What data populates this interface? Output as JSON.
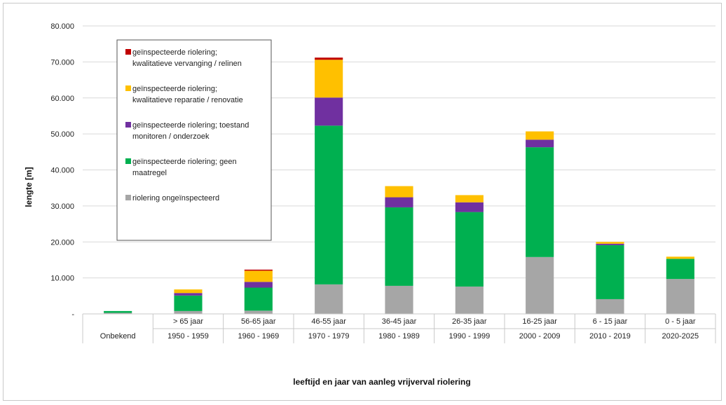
{
  "chart_data": {
    "type": "bar",
    "stacked": true,
    "ylabel": "lengte [m]",
    "xlabel": "leeftijd en jaar van aanleg vrijverval riolering",
    "ylim": [
      0,
      80000
    ],
    "yticks": [
      "-",
      "10.000",
      "20.000",
      "30.000",
      "40.000",
      "50.000",
      "60.000",
      "70.000",
      "80.000"
    ],
    "grid": true,
    "legend_position": "top-left",
    "categories_age": [
      "",
      "> 65 jaar",
      "56-65 jaar",
      "46-55 jaar",
      "36-45 jaar",
      "26-35 jaar",
      "16-25 jaar",
      "6 - 15 jaar",
      "0 - 5 jaar"
    ],
    "categories_year": [
      "Onbekend",
      "1950 - 1959",
      "1960 - 1969",
      "1970 - 1979",
      "1980 - 1989",
      "1990 - 1999",
      "2000 - 2009",
      "2010 - 2019",
      "2020-2025"
    ],
    "series": [
      {
        "name": "riolering ongeïnspecteerd",
        "color": "#a6a6a6",
        "values": [
          300,
          800,
          900,
          8200,
          7800,
          7600,
          15800,
          4100,
          9700
        ]
      },
      {
        "name": "geïnspecteerde riolering; geen maatregel",
        "color": "#00b050",
        "values": [
          500,
          4300,
          6400,
          44100,
          21800,
          20700,
          30500,
          15000,
          5600
        ]
      },
      {
        "name": "geïnspecteerde riolering; toestand monitoren / onderzoek",
        "color": "#7030a0",
        "values": [
          0,
          700,
          1600,
          7800,
          2800,
          2700,
          2100,
          400,
          0
        ]
      },
      {
        "name": "geïnspecteerde riolering; kwalitatieve reparatie / renovatie",
        "color": "#ffc000",
        "values": [
          0,
          1000,
          3100,
          10500,
          3100,
          2000,
          2300,
          500,
          600
        ]
      },
      {
        "name": "geïnspecteerde riolering; kwalitatieve vervanging / relinen",
        "color": "#c00000",
        "values": [
          0,
          0,
          300,
          600,
          0,
          0,
          0,
          0,
          0
        ]
      }
    ],
    "legend": [
      {
        "line1": "geïnspecteerde riolering;",
        "line2": "kwalitatieve vervanging / relinen",
        "color": "#c00000"
      },
      {
        "line1": "geïnspecteerde riolering;",
        "line2": "kwalitatieve reparatie / renovatie",
        "color": "#ffc000"
      },
      {
        "line1": "geïnspecteerde riolering; toestand",
        "line2": "monitoren / onderzoek",
        "color": "#7030a0"
      },
      {
        "line1": "geïnspecteerde riolering; geen",
        "line2": "maatregel",
        "color": "#00b050"
      },
      {
        "line1": "riolering ongeïnspecteerd",
        "line2": "",
        "color": "#a6a6a6"
      }
    ]
  }
}
